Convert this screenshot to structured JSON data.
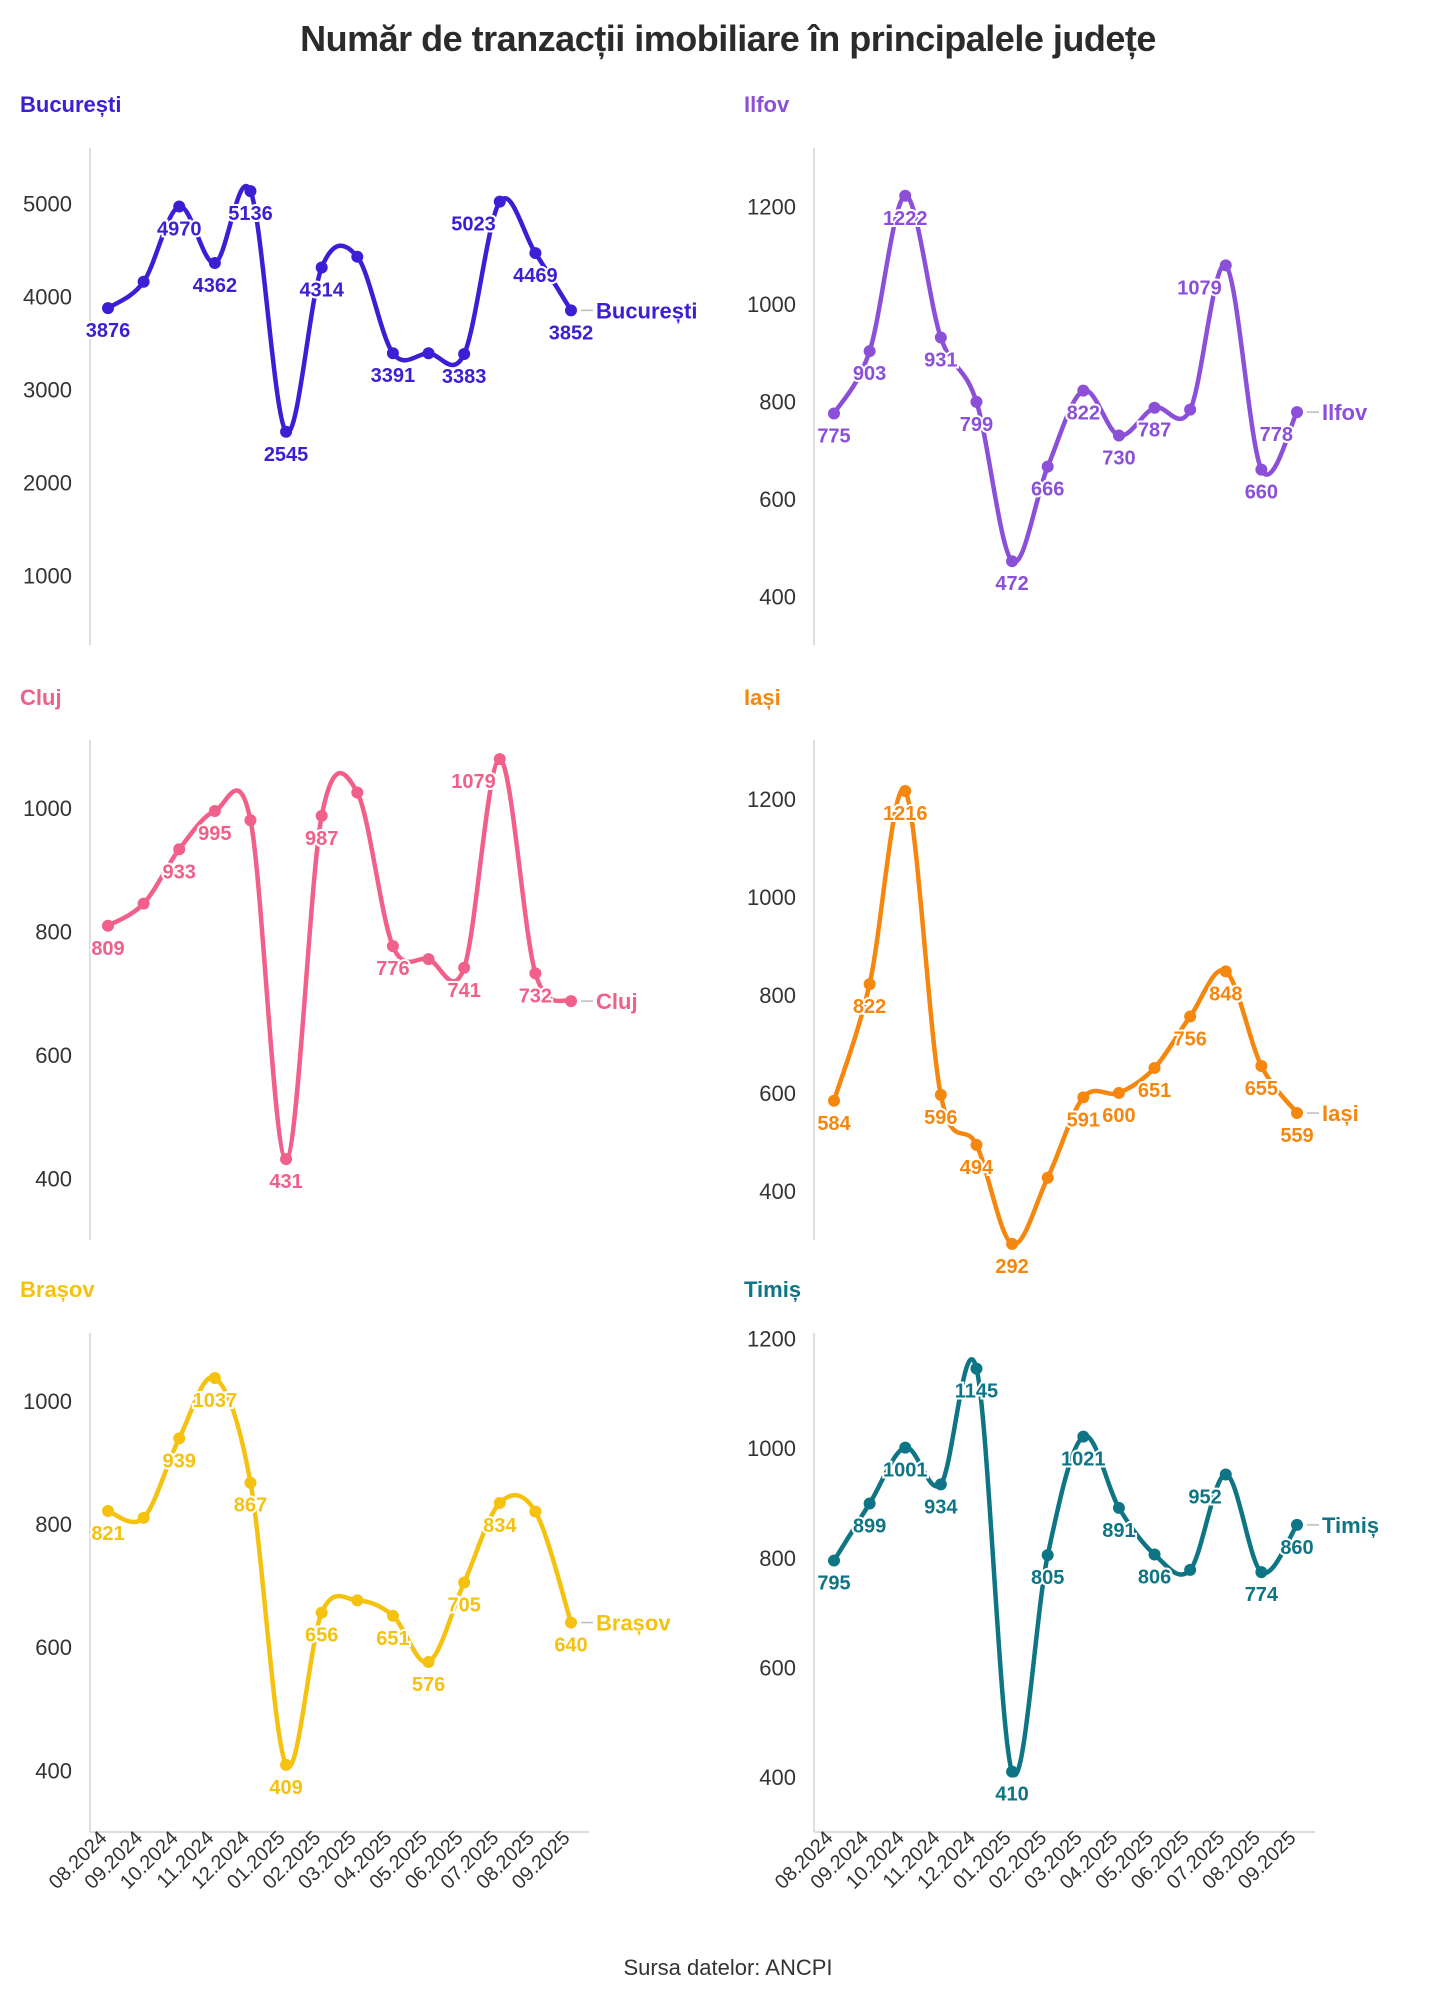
{
  "title": "Număr de tranzacții imobiliare în principalele județe",
  "source": "Sursa datelor: ANCPI",
  "chart_data": [
    {
      "type": "line",
      "name": "București",
      "color": "#3a1fd4",
      "ylim": [
        250,
        5600
      ],
      "yticks": [
        1000,
        2000,
        3000,
        4000,
        5000
      ],
      "categories": [
        "08.2024",
        "09.2024",
        "10.2024",
        "11.2024",
        "12.2024",
        "01.2025",
        "02.2025",
        "03.2025",
        "04.2025",
        "05.2025",
        "06.2025",
        "07.2025",
        "08.2025",
        "09.2025"
      ],
      "values": [
        3876,
        4160,
        4970,
        4362,
        5136,
        2545,
        4314,
        4430,
        3391,
        3391,
        3383,
        5023,
        4469,
        3852
      ],
      "labels": [
        [
          "3876",
          "below"
        ],
        null,
        [
          "4970",
          "below"
        ],
        [
          "4362",
          "below"
        ],
        [
          "5136",
          "below"
        ],
        [
          "2545",
          "below"
        ],
        [
          "4314",
          "below"
        ],
        null,
        [
          "3391",
          "below"
        ],
        null,
        [
          "3383",
          "below"
        ],
        [
          "5023",
          "left"
        ],
        [
          "4469",
          "below"
        ],
        [
          "3852",
          "below"
        ]
      ]
    },
    {
      "type": "line",
      "name": "Ilfov",
      "color": "#8b4fd8",
      "ylim": [
        300,
        1320
      ],
      "yticks": [
        400,
        600,
        800,
        1000,
        1200
      ],
      "categories": [
        "08.2024",
        "09.2024",
        "10.2024",
        "11.2024",
        "12.2024",
        "01.2025",
        "02.2025",
        "03.2025",
        "04.2025",
        "05.2025",
        "06.2025",
        "07.2025",
        "08.2025",
        "09.2025"
      ],
      "values": [
        775,
        903,
        1222,
        931,
        799,
        472,
        666,
        822,
        730,
        787,
        783,
        1079,
        660,
        778
      ],
      "labels": [
        [
          "775",
          "below"
        ],
        [
          "903",
          "below"
        ],
        [
          "1222",
          "below"
        ],
        [
          "931",
          "below"
        ],
        [
          "799",
          "below"
        ],
        [
          "472",
          "below"
        ],
        [
          "666",
          "below"
        ],
        [
          "822",
          "below"
        ],
        [
          "730",
          "below"
        ],
        [
          "787",
          "below"
        ],
        null,
        [
          "1079",
          "left"
        ],
        [
          "660",
          "below"
        ],
        [
          "778",
          "left"
        ]
      ]
    },
    {
      "type": "line",
      "name": "Cluj",
      "color": "#f0608a",
      "ylim": [
        300,
        1110
      ],
      "yticks": [
        400,
        600,
        800,
        1000
      ],
      "categories": [
        "08.2024",
        "09.2024",
        "10.2024",
        "11.2024",
        "12.2024",
        "01.2025",
        "02.2025",
        "03.2025",
        "04.2025",
        "05.2025",
        "06.2025",
        "07.2025",
        "08.2025",
        "09.2025"
      ],
      "values": [
        809,
        845,
        933,
        995,
        980,
        431,
        987,
        1025,
        776,
        755,
        741,
        1079,
        732,
        687
      ],
      "labels": [
        [
          "809",
          "below"
        ],
        null,
        [
          "933",
          "below"
        ],
        [
          "995",
          "below"
        ],
        null,
        [
          "431",
          "below"
        ],
        [
          "987",
          "below"
        ],
        null,
        [
          "776",
          "below"
        ],
        null,
        [
          "741",
          "below"
        ],
        [
          "1079",
          "left"
        ],
        [
          "732",
          "below"
        ],
        null
      ]
    },
    {
      "type": "line",
      "name": "Iași",
      "color": "#f5870f",
      "ylim": [
        300,
        1320
      ],
      "yticks": [
        400,
        600,
        800,
        1000,
        1200
      ],
      "categories": [
        "08.2024",
        "09.2024",
        "10.2024",
        "11.2024",
        "12.2024",
        "01.2025",
        "02.2025",
        "03.2025",
        "04.2025",
        "05.2025",
        "06.2025",
        "07.2025",
        "08.2025",
        "09.2025"
      ],
      "values": [
        584,
        822,
        1216,
        596,
        494,
        292,
        427,
        591,
        600,
        651,
        756,
        848,
        655,
        559
      ],
      "labels": [
        [
          "584",
          "below"
        ],
        [
          "822",
          "below"
        ],
        [
          "1216",
          "below"
        ],
        [
          "596",
          "below"
        ],
        [
          "494",
          "below"
        ],
        [
          "292",
          "below"
        ],
        null,
        [
          "591",
          "below"
        ],
        [
          "600",
          "below"
        ],
        [
          "651",
          "below"
        ],
        [
          "756",
          "below"
        ],
        [
          "848",
          "below"
        ],
        [
          "655",
          "below"
        ],
        [
          "559",
          "below"
        ]
      ]
    },
    {
      "type": "line",
      "name": "Brașov",
      "color": "#f5c20f",
      "ylim": [
        300,
        1110
      ],
      "yticks": [
        400,
        600,
        800,
        1000
      ],
      "categories": [
        "08.2024",
        "09.2024",
        "10.2024",
        "11.2024",
        "12.2024",
        "01.2025",
        "02.2025",
        "03.2025",
        "04.2025",
        "05.2025",
        "06.2025",
        "07.2025",
        "08.2025",
        "09.2025"
      ],
      "values": [
        821,
        810,
        939,
        1037,
        867,
        409,
        656,
        676,
        651,
        576,
        705,
        834,
        820,
        640
      ],
      "labels": [
        [
          "821",
          "below"
        ],
        null,
        [
          "939",
          "below"
        ],
        [
          "1037",
          "below"
        ],
        [
          "867",
          "below"
        ],
        [
          "409",
          "below"
        ],
        [
          "656",
          "below"
        ],
        null,
        [
          "651",
          "below"
        ],
        [
          "576",
          "below"
        ],
        [
          "705",
          "below"
        ],
        [
          "834",
          "below"
        ],
        null,
        [
          "640",
          "below"
        ]
      ]
    },
    {
      "type": "line",
      "name": "Timiș",
      "color": "#0e7585",
      "ylim": [
        300,
        1210
      ],
      "yticks": [
        400,
        600,
        800,
        1000,
        1200
      ],
      "categories": [
        "08.2024",
        "09.2024",
        "10.2024",
        "11.2024",
        "12.2024",
        "01.2025",
        "02.2025",
        "03.2025",
        "04.2025",
        "05.2025",
        "06.2025",
        "07.2025",
        "08.2025",
        "09.2025"
      ],
      "values": [
        795,
        899,
        1001,
        934,
        1145,
        410,
        805,
        1021,
        891,
        806,
        778,
        952,
        774,
        860
      ],
      "labels": [
        [
          "795",
          "below"
        ],
        [
          "899",
          "below"
        ],
        [
          "1001",
          "below"
        ],
        [
          "934",
          "below"
        ],
        [
          "1145",
          "below"
        ],
        [
          "410",
          "below"
        ],
        [
          "805",
          "below"
        ],
        [
          "1021",
          "below"
        ],
        [
          "891",
          "below"
        ],
        [
          "806",
          "below"
        ],
        null,
        [
          "952",
          "left"
        ],
        [
          "774",
          "below"
        ],
        [
          "860",
          "below"
        ]
      ]
    }
  ]
}
